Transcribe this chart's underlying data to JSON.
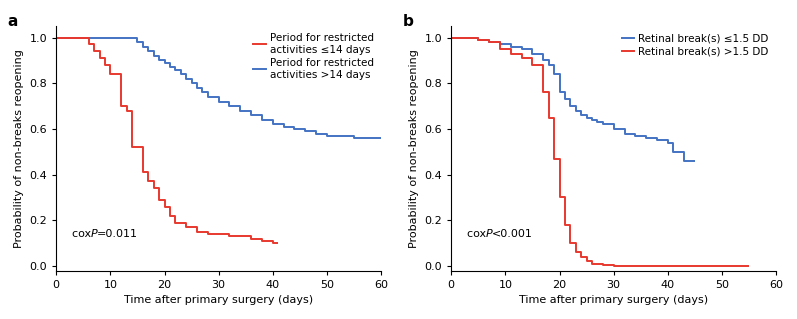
{
  "panel_a": {
    "title": "a",
    "xlabel": "Time after primary surgery (days)",
    "ylabel": "Probability of non-breaks reopening",
    "xlim": [
      0,
      60
    ],
    "ylim": [
      -0.02,
      1.05
    ],
    "xticks": [
      0,
      10,
      20,
      30,
      40,
      50,
      60
    ],
    "yticks": [
      0.0,
      0.2,
      0.4,
      0.6,
      0.8,
      1.0
    ],
    "cox_text_plain": "cox ",
    "cox_text_italic": "P",
    "cox_text_rest": "=0.011",
    "legend": [
      {
        "label": "Period for restricted\nactivities ≤14 days",
        "color": "#e8382d"
      },
      {
        "label": "Period for restricted\nactivities >14 days",
        "color": "#4472c4"
      }
    ],
    "red_curve": {
      "x": [
        0,
        6,
        6,
        7,
        7,
        8,
        8,
        9,
        9,
        10,
        10,
        12,
        12,
        13,
        13,
        14,
        14,
        16,
        16,
        17,
        17,
        18,
        18,
        19,
        19,
        20,
        20,
        21,
        21,
        22,
        22,
        24,
        24,
        26,
        26,
        28,
        28,
        32,
        32,
        36,
        36,
        38,
        38,
        40,
        40,
        41
      ],
      "y": [
        1.0,
        1.0,
        0.97,
        0.97,
        0.94,
        0.94,
        0.91,
        0.91,
        0.88,
        0.88,
        0.84,
        0.84,
        0.7,
        0.7,
        0.68,
        0.68,
        0.52,
        0.52,
        0.41,
        0.41,
        0.37,
        0.37,
        0.34,
        0.34,
        0.29,
        0.29,
        0.26,
        0.26,
        0.22,
        0.22,
        0.19,
        0.19,
        0.17,
        0.17,
        0.15,
        0.15,
        0.14,
        0.14,
        0.13,
        0.13,
        0.12,
        0.12,
        0.11,
        0.11,
        0.1,
        0.1
      ]
    },
    "blue_curve": {
      "x": [
        0,
        15,
        15,
        16,
        16,
        17,
        17,
        18,
        18,
        19,
        19,
        20,
        20,
        21,
        21,
        22,
        22,
        23,
        23,
        24,
        24,
        25,
        25,
        26,
        26,
        27,
        27,
        28,
        28,
        30,
        30,
        32,
        32,
        34,
        34,
        36,
        36,
        38,
        38,
        40,
        40,
        42,
        42,
        44,
        44,
        46,
        46,
        48,
        48,
        50,
        50,
        55,
        55,
        60
      ],
      "y": [
        1.0,
        1.0,
        0.98,
        0.98,
        0.96,
        0.96,
        0.94,
        0.94,
        0.92,
        0.92,
        0.9,
        0.9,
        0.89,
        0.89,
        0.87,
        0.87,
        0.86,
        0.86,
        0.84,
        0.84,
        0.82,
        0.82,
        0.8,
        0.8,
        0.78,
        0.78,
        0.76,
        0.76,
        0.74,
        0.74,
        0.72,
        0.72,
        0.7,
        0.7,
        0.68,
        0.68,
        0.66,
        0.66,
        0.64,
        0.64,
        0.62,
        0.62,
        0.61,
        0.61,
        0.6,
        0.6,
        0.59,
        0.59,
        0.58,
        0.58,
        0.57,
        0.57,
        0.56,
        0.56
      ]
    }
  },
  "panel_b": {
    "title": "b",
    "xlabel": "Time after primary surgery (days)",
    "ylabel": "Probability of non-breaks reopening",
    "xlim": [
      0,
      60
    ],
    "ylim": [
      -0.02,
      1.05
    ],
    "xticks": [
      0,
      10,
      20,
      30,
      40,
      50,
      60
    ],
    "yticks": [
      0.0,
      0.2,
      0.4,
      0.6,
      0.8,
      1.0
    ],
    "cox_text_plain": "cox ",
    "cox_text_italic": "P",
    "cox_text_rest": "<0.001",
    "legend": [
      {
        "label": "Retinal break(s) ≤1.5 DD",
        "color": "#4472c4"
      },
      {
        "label": "Retinal break(s) >1.5 DD",
        "color": "#e8382d"
      }
    ],
    "blue_curve": {
      "x": [
        0,
        5,
        5,
        7,
        7,
        9,
        9,
        11,
        11,
        13,
        13,
        15,
        15,
        17,
        17,
        18,
        18,
        19,
        19,
        20,
        20,
        21,
        21,
        22,
        22,
        23,
        23,
        24,
        24,
        25,
        25,
        26,
        26,
        27,
        27,
        28,
        28,
        30,
        30,
        32,
        32,
        34,
        34,
        36,
        36,
        38,
        38,
        40,
        40,
        41,
        41,
        43,
        43,
        45
      ],
      "y": [
        1.0,
        1.0,
        0.99,
        0.99,
        0.98,
        0.98,
        0.97,
        0.97,
        0.96,
        0.96,
        0.95,
        0.95,
        0.93,
        0.93,
        0.9,
        0.9,
        0.88,
        0.88,
        0.84,
        0.84,
        0.76,
        0.76,
        0.73,
        0.73,
        0.7,
        0.7,
        0.68,
        0.68,
        0.66,
        0.66,
        0.65,
        0.65,
        0.64,
        0.64,
        0.63,
        0.63,
        0.62,
        0.62,
        0.6,
        0.6,
        0.58,
        0.58,
        0.57,
        0.57,
        0.56,
        0.56,
        0.55,
        0.55,
        0.54,
        0.54,
        0.5,
        0.5,
        0.46,
        0.46
      ]
    },
    "red_curve": {
      "x": [
        0,
        5,
        5,
        7,
        7,
        9,
        9,
        11,
        11,
        13,
        13,
        15,
        15,
        17,
        17,
        18,
        18,
        19,
        19,
        20,
        20,
        21,
        21,
        22,
        22,
        23,
        23,
        24,
        24,
        25,
        25,
        26,
        26,
        28,
        28,
        30,
        30,
        32,
        32,
        35,
        35,
        50,
        50,
        55
      ],
      "y": [
        1.0,
        1.0,
        0.99,
        0.99,
        0.98,
        0.98,
        0.95,
        0.95,
        0.93,
        0.93,
        0.91,
        0.91,
        0.88,
        0.88,
        0.76,
        0.76,
        0.65,
        0.65,
        0.47,
        0.47,
        0.3,
        0.3,
        0.18,
        0.18,
        0.1,
        0.1,
        0.06,
        0.06,
        0.04,
        0.04,
        0.02,
        0.02,
        0.01,
        0.01,
        0.005,
        0.005,
        0.001,
        0.001,
        0.0,
        0.0,
        0.0,
        0.0,
        0.0,
        0.0
      ]
    }
  },
  "red_color": "#e8382d",
  "blue_color": "#4472c4",
  "font_size": 8,
  "label_font_size": 8,
  "title_font_size": 11,
  "legend_font_size": 7.5,
  "line_width": 1.4,
  "cox_font_size": 8
}
